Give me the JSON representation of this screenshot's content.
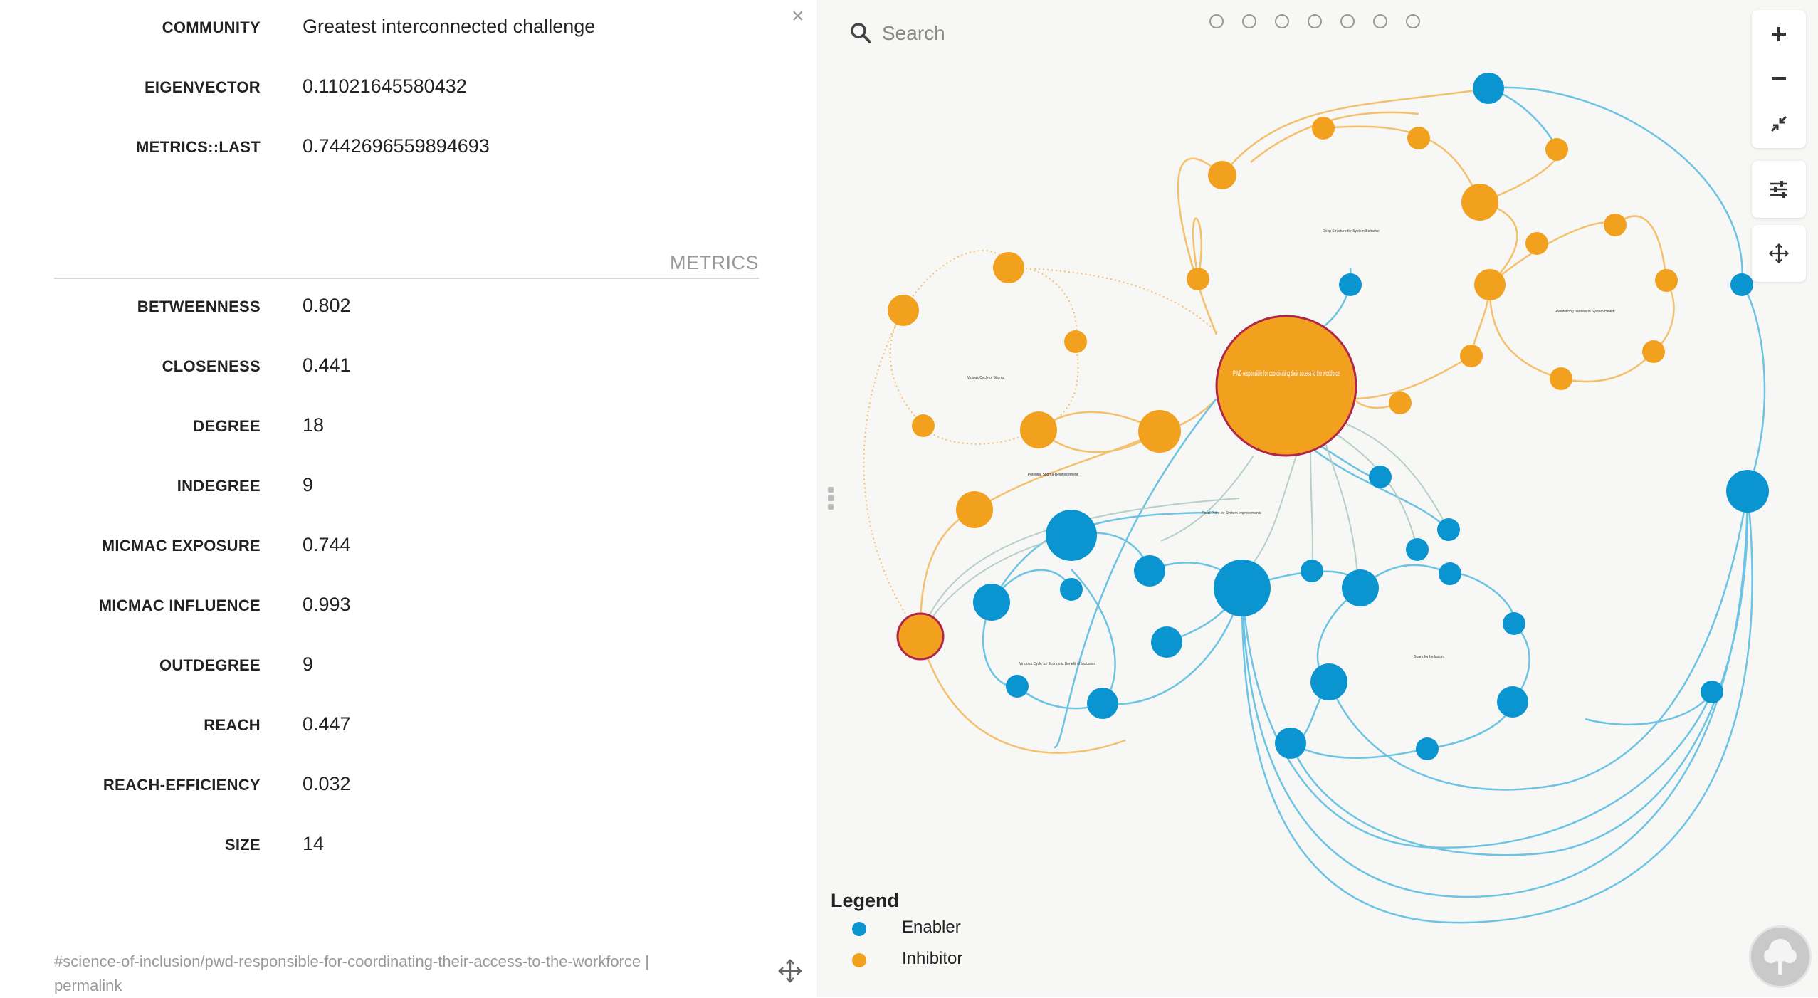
{
  "panel": {
    "close_label": "×",
    "attributes": [
      {
        "key": "COMMUNITY",
        "value": "Greatest interconnected challenge"
      },
      {
        "key": "EIGENVECTOR",
        "value": "0.11021645580432"
      },
      {
        "key": "METRICS::LAST",
        "value": "0.7442696559894693"
      }
    ],
    "metrics_title": "METRICS",
    "metrics": [
      {
        "key": "BETWEENNESS",
        "value": "0.802"
      },
      {
        "key": "CLOSENESS",
        "value": "0.441"
      },
      {
        "key": "DEGREE",
        "value": "18"
      },
      {
        "key": "INDEGREE",
        "value": "9"
      },
      {
        "key": "MICMAC EXPOSURE",
        "value": "0.744"
      },
      {
        "key": "MICMAC INFLUENCE",
        "value": "0.993"
      },
      {
        "key": "OUTDEGREE",
        "value": "9"
      },
      {
        "key": "REACH",
        "value": "0.447"
      },
      {
        "key": "REACH-EFFICIENCY",
        "value": "0.032"
      },
      {
        "key": "SIZE",
        "value": "14"
      }
    ],
    "permalink_path": "#science-of-inclusion/pwd-responsible-for-coordinating-their-access-to-the-workforce |",
    "permalink_label": "permalink"
  },
  "map": {
    "search_placeholder": "Search",
    "view_dot_count": 7,
    "focus_node_label": "PWD responsible for coordinating their access to the workforce",
    "community_labels": [
      "Deep Structure for System Behavior",
      "Vicious Cycle of Stigma",
      "Reinforcing barriers to System Health",
      "Potential Stigma Reinforcement",
      "Focal Point for System Improvements",
      "Virtuous Cycle for Economic Benefit of Inclusion",
      "Spark for Inclusion"
    ],
    "legend": {
      "title": "Legend",
      "items": [
        {
          "label": "Enabler",
          "color": "#0a95d0"
        },
        {
          "label": "Inhibitor",
          "color": "#f2a11f"
        }
      ]
    }
  },
  "colors": {
    "enabler": "#0a95d0",
    "inhibitor": "#f2a11f",
    "edge_blue": "#6cc3e3",
    "edge_orange": "#f4c06e",
    "focus_border": "#b0264a"
  }
}
